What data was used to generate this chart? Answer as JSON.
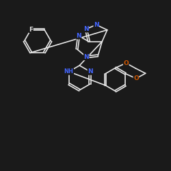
{
  "background_color": "#1a1a1a",
  "bond_color": "#e8e8e8",
  "N_color": "#4466ff",
  "F_color": "#e8e8e8",
  "O_color": "#cc5500",
  "bond_width": 1.2,
  "font_size": 6.5,
  "xlim": [
    0,
    10
  ],
  "ylim": [
    0,
    10
  ]
}
